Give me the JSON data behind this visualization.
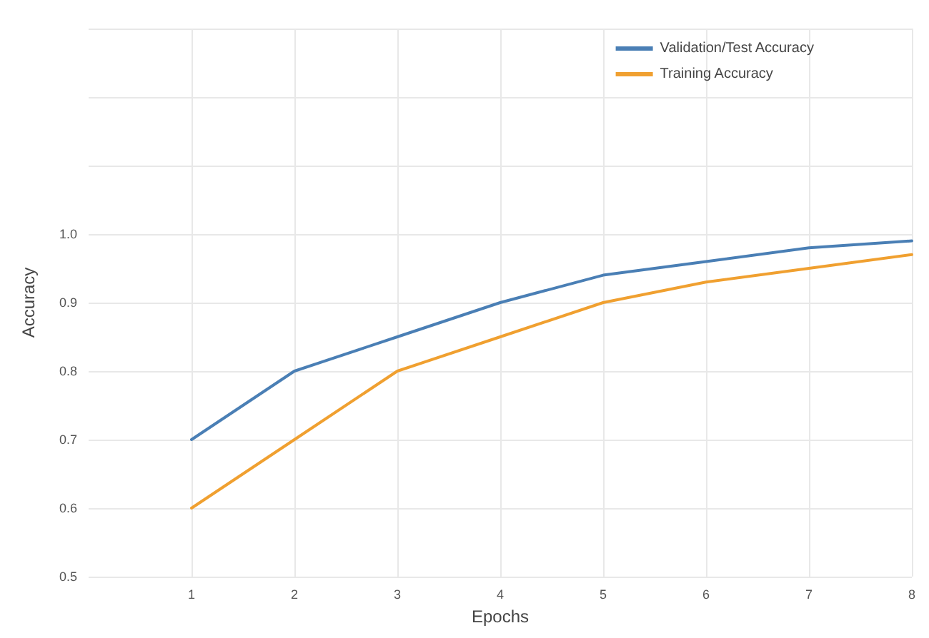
{
  "chart_data": {
    "type": "line",
    "xlabel": "Epochs",
    "ylabel": "Accuracy",
    "x": [
      1,
      2,
      3,
      4,
      5,
      6,
      7,
      8
    ],
    "series": [
      {
        "name": "Validation/Test Accuracy",
        "color": "#4a7fb5",
        "values": [
          0.7,
          0.8,
          0.85,
          0.9,
          0.94,
          0.96,
          0.98,
          0.99
        ]
      },
      {
        "name": "Training Accuracy",
        "color": "#f0a030",
        "values": [
          0.6,
          0.7,
          0.8,
          0.85,
          0.9,
          0.93,
          0.95,
          0.97
        ]
      }
    ],
    "xlim": [
      0,
      8
    ],
    "xticks": [
      1,
      2,
      3,
      4,
      5,
      6,
      7,
      8
    ],
    "ylim": [
      0.5,
      1.3
    ],
    "yticks": [
      0.5,
      0.6,
      0.7,
      0.8,
      0.9,
      {
        "value": 1.0,
        "label": "1.0"
      },
      {
        "value": 1.1,
        "label": null
      },
      {
        "value": 1.2,
        "label": null
      },
      {
        "value": 1.3,
        "label": null
      }
    ],
    "grid": true,
    "legend": "top right",
    "marker": "none",
    "line_style": "solid"
  }
}
